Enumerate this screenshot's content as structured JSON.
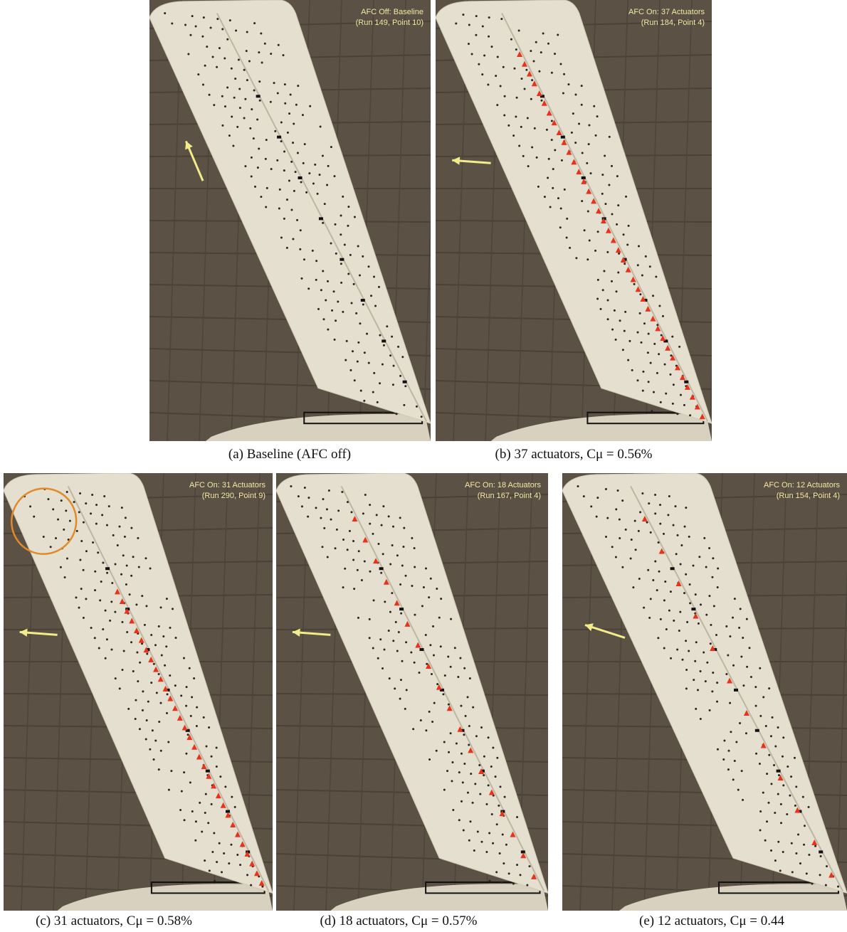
{
  "panels": [
    {
      "overlay": [
        "AFC Off: Baseline",
        "(Run 149, Point 10)"
      ],
      "caption": "(a) Baseline (AFC off)"
    },
    {
      "overlay": [
        "AFC On: 37 Actuators",
        "(Run 184, Point 4)"
      ],
      "caption": "(b) 37 actuators, Cμ = 0.56%"
    },
    {
      "overlay": [
        "AFC On: 31 Actuators",
        "(Run 290, Point 9)"
      ],
      "caption": "(c) 31 actuators, Cμ = 0.58%"
    },
    {
      "overlay": [
        "AFC On: 18 Actuators",
        "(Run 167, Point 4)"
      ],
      "caption": "(d) 18 actuators, Cμ = 0.57%"
    },
    {
      "overlay": [
        "AFC On: 12 Actuators",
        "(Run 154, Point 4)"
      ],
      "caption": "(e) 12 actuators, Cμ = 0.44"
    }
  ]
}
